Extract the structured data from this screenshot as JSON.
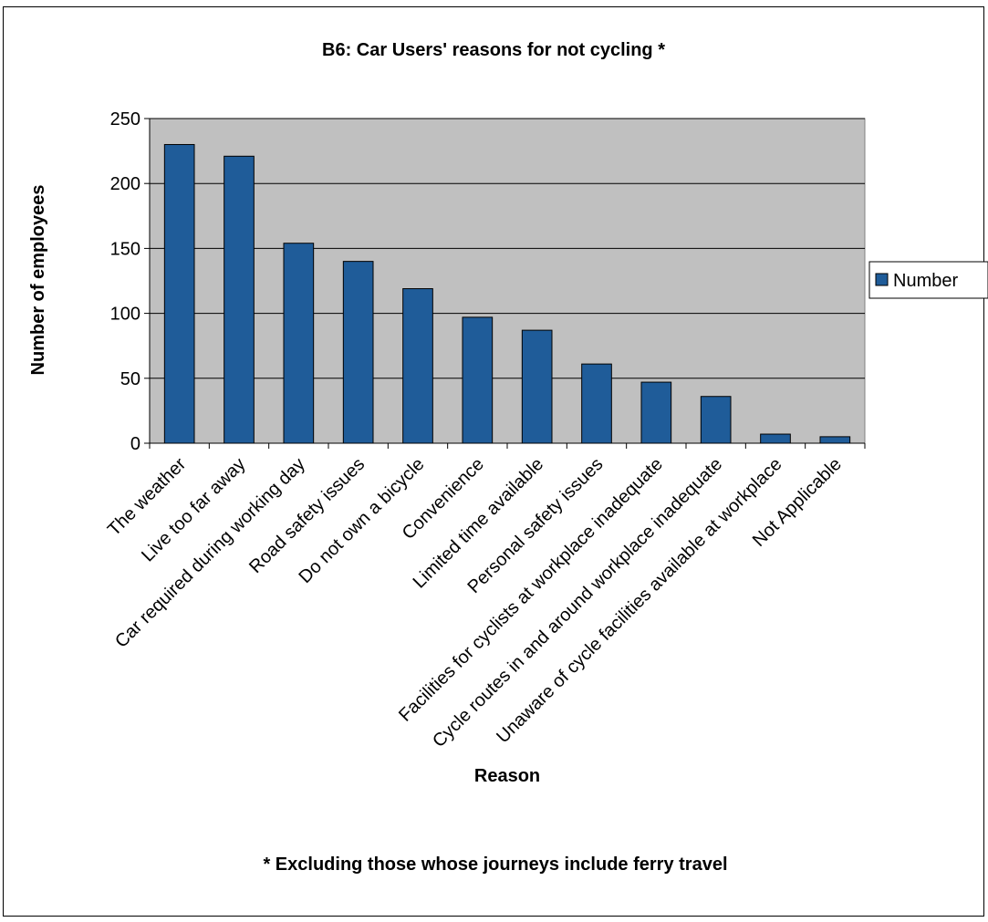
{
  "chart_data": {
    "type": "bar",
    "title": "B6: Car Users' reasons for not cycling *",
    "xlabel": "Reason",
    "ylabel": "Number of employees",
    "footnote": "* Excluding those whose journeys include ferry travel",
    "categories": [
      "The weather",
      "Live too far away",
      "Car required during working day",
      "Road safety issues",
      "Do not own a bicycle",
      "Convenience",
      "Limited time available",
      "Personal safety issues",
      "Facilities for cyclists at workplace inadequate",
      "Cycle routes in and around workplace inadequate",
      "Unaware of cycle facilities available at workplace",
      "Not Applicable"
    ],
    "series": [
      {
        "name": "Number",
        "values": [
          230,
          221,
          154,
          140,
          119,
          97,
          87,
          61,
          47,
          36,
          7,
          5
        ]
      }
    ],
    "ylim": [
      0,
      250
    ],
    "yticks": [
      0,
      50,
      100,
      150,
      200,
      250
    ],
    "grid": true,
    "legend_position": "right",
    "colors": {
      "bar": "#1f5c99",
      "plot_bg": "#c0c0c0",
      "bar_edge": "#000000"
    }
  }
}
